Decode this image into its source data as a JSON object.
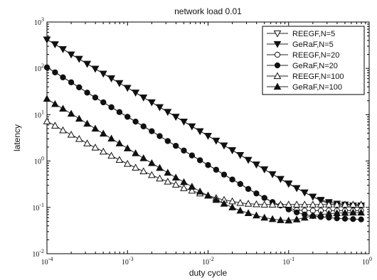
{
  "chart_data": {
    "type": "line",
    "title": "network load 0.01",
    "xlabel": "duty cycle",
    "ylabel": "latency",
    "xscale": "log",
    "yscale": "log",
    "xlim": [
      0.0001,
      1
    ],
    "ylim": [
      0.01,
      1000
    ],
    "x_ticks": [
      {
        "value": 0.0001,
        "base": "10",
        "exp": "-4"
      },
      {
        "value": 0.001,
        "base": "10",
        "exp": "-3"
      },
      {
        "value": 0.01,
        "base": "10",
        "exp": "-2"
      },
      {
        "value": 0.1,
        "base": "10",
        "exp": "-1"
      },
      {
        "value": 1,
        "base": "10",
        "exp": "0"
      }
    ],
    "y_ticks": [
      {
        "value": 0.01,
        "base": "10",
        "exp": "-2"
      },
      {
        "value": 0.1,
        "base": "10",
        "exp": "-1"
      },
      {
        "value": 1,
        "base": "10",
        "exp": "0"
      },
      {
        "value": 10,
        "base": "10",
        "exp": "1"
      },
      {
        "value": 100,
        "base": "10",
        "exp": "2"
      },
      {
        "value": 1000,
        "base": "10",
        "exp": "3"
      }
    ],
    "grid": false,
    "legend_position": "top-right",
    "x": [
      0.0001,
      0.000126,
      0.000158,
      0.0002,
      0.000251,
      0.000316,
      0.000398,
      0.000501,
      0.000631,
      0.000794,
      0.001,
      0.00126,
      0.00158,
      0.002,
      0.00251,
      0.00316,
      0.00398,
      0.00501,
      0.00631,
      0.00794,
      0.01,
      0.0126,
      0.0158,
      0.02,
      0.0251,
      0.0316,
      0.0398,
      0.0501,
      0.0631,
      0.0794,
      0.1,
      0.126,
      0.158,
      0.2,
      0.251,
      0.316,
      0.398,
      0.501,
      0.631,
      0.794
    ],
    "series": [
      {
        "name": "REEGF,N=5",
        "marker": "triangle-down",
        "filled": false,
        "values": [
          420,
          330,
          260,
          200,
          160,
          125,
          98,
          77,
          61,
          48,
          38,
          30,
          23.5,
          18.5,
          14.5,
          11.5,
          9.0,
          7.1,
          5.6,
          4.4,
          3.5,
          2.75,
          2.17,
          1.71,
          1.35,
          1.06,
          0.84,
          0.66,
          0.52,
          0.41,
          0.33,
          0.26,
          0.21,
          0.17,
          0.14,
          0.12,
          0.11,
          0.105,
          0.1,
          0.1
        ]
      },
      {
        "name": "GeRaF,N=5",
        "marker": "triangle-down",
        "filled": true,
        "values": [
          420,
          330,
          260,
          200,
          160,
          125,
          98,
          77,
          61,
          48,
          38,
          30,
          23.5,
          18.5,
          14.5,
          11.5,
          9.0,
          7.1,
          5.6,
          4.4,
          3.5,
          2.75,
          2.17,
          1.71,
          1.35,
          1.06,
          0.84,
          0.66,
          0.52,
          0.41,
          0.32,
          0.26,
          0.21,
          0.17,
          0.145,
          0.13,
          0.12,
          0.115,
          0.11,
          0.11
        ]
      },
      {
        "name": "REEGF,N=20",
        "marker": "circle",
        "filled": false,
        "values": [
          105,
          82,
          64,
          50,
          39,
          30,
          23.5,
          18.5,
          14.5,
          11.4,
          9.0,
          7.1,
          5.6,
          4.4,
          3.45,
          2.7,
          2.13,
          1.68,
          1.32,
          1.04,
          0.82,
          0.65,
          0.51,
          0.4,
          0.32,
          0.25,
          0.2,
          0.16,
          0.13,
          0.11,
          0.095,
          0.088,
          0.085,
          0.085,
          0.085,
          0.085,
          0.085,
          0.085,
          0.085,
          0.085
        ]
      },
      {
        "name": "GeRaF,N=20",
        "marker": "circle",
        "filled": true,
        "values": [
          105,
          82,
          64,
          50,
          39,
          30,
          23.5,
          18.5,
          14.5,
          11.4,
          9.0,
          7.1,
          5.6,
          4.4,
          3.45,
          2.7,
          2.13,
          1.68,
          1.32,
          1.04,
          0.82,
          0.65,
          0.51,
          0.4,
          0.32,
          0.25,
          0.2,
          0.16,
          0.13,
          0.11,
          0.09,
          0.078,
          0.07,
          0.065,
          0.062,
          0.06,
          0.058,
          0.057,
          0.056,
          0.055
        ]
      },
      {
        "name": "REEGF,N=100",
        "marker": "triangle-up",
        "filled": false,
        "values": [
          7.2,
          5.8,
          4.6,
          3.7,
          3.0,
          2.4,
          1.95,
          1.6,
          1.3,
          1.06,
          0.87,
          0.72,
          0.6,
          0.5,
          0.42,
          0.36,
          0.31,
          0.26,
          0.23,
          0.2,
          0.18,
          0.16,
          0.145,
          0.135,
          0.125,
          0.12,
          0.117,
          0.115,
          0.115,
          0.115,
          0.115,
          0.115,
          0.115,
          0.115,
          0.115,
          0.115,
          0.115,
          0.115,
          0.115,
          0.115
        ]
      },
      {
        "name": "GeRaF,N=100",
        "marker": "triangle-up",
        "filled": true,
        "values": [
          22,
          17,
          13.5,
          10.5,
          8.2,
          6.4,
          5.0,
          3.9,
          3.05,
          2.4,
          1.88,
          1.47,
          1.15,
          0.9,
          0.71,
          0.56,
          0.44,
          0.35,
          0.28,
          0.22,
          0.18,
          0.145,
          0.12,
          0.1,
          0.085,
          0.075,
          0.067,
          0.06,
          0.056,
          0.053,
          0.052,
          0.055,
          0.06,
          0.066,
          0.07,
          0.073,
          0.075,
          0.076,
          0.077,
          0.077
        ]
      }
    ],
    "legend_extra_series": [
      {
        "name": "REEGF,N=5*",
        "values": [
          7.2,
          5.8,
          4.6,
          3.7,
          3.0,
          2.4,
          1.95,
          1.6,
          1.3,
          1.06,
          0.87,
          0.72,
          0.6,
          0.5,
          0.42,
          0.36,
          0.31,
          0.26,
          0.23,
          0.2,
          0.18,
          0.16,
          0.145,
          0.135,
          0.125,
          0.12,
          0.117,
          0.115,
          0.115,
          0.115,
          0.115,
          0.115,
          0.115,
          0.115,
          0.115,
          0.115,
          0.115,
          0.115,
          0.115,
          0.115
        ]
      }
    ]
  }
}
